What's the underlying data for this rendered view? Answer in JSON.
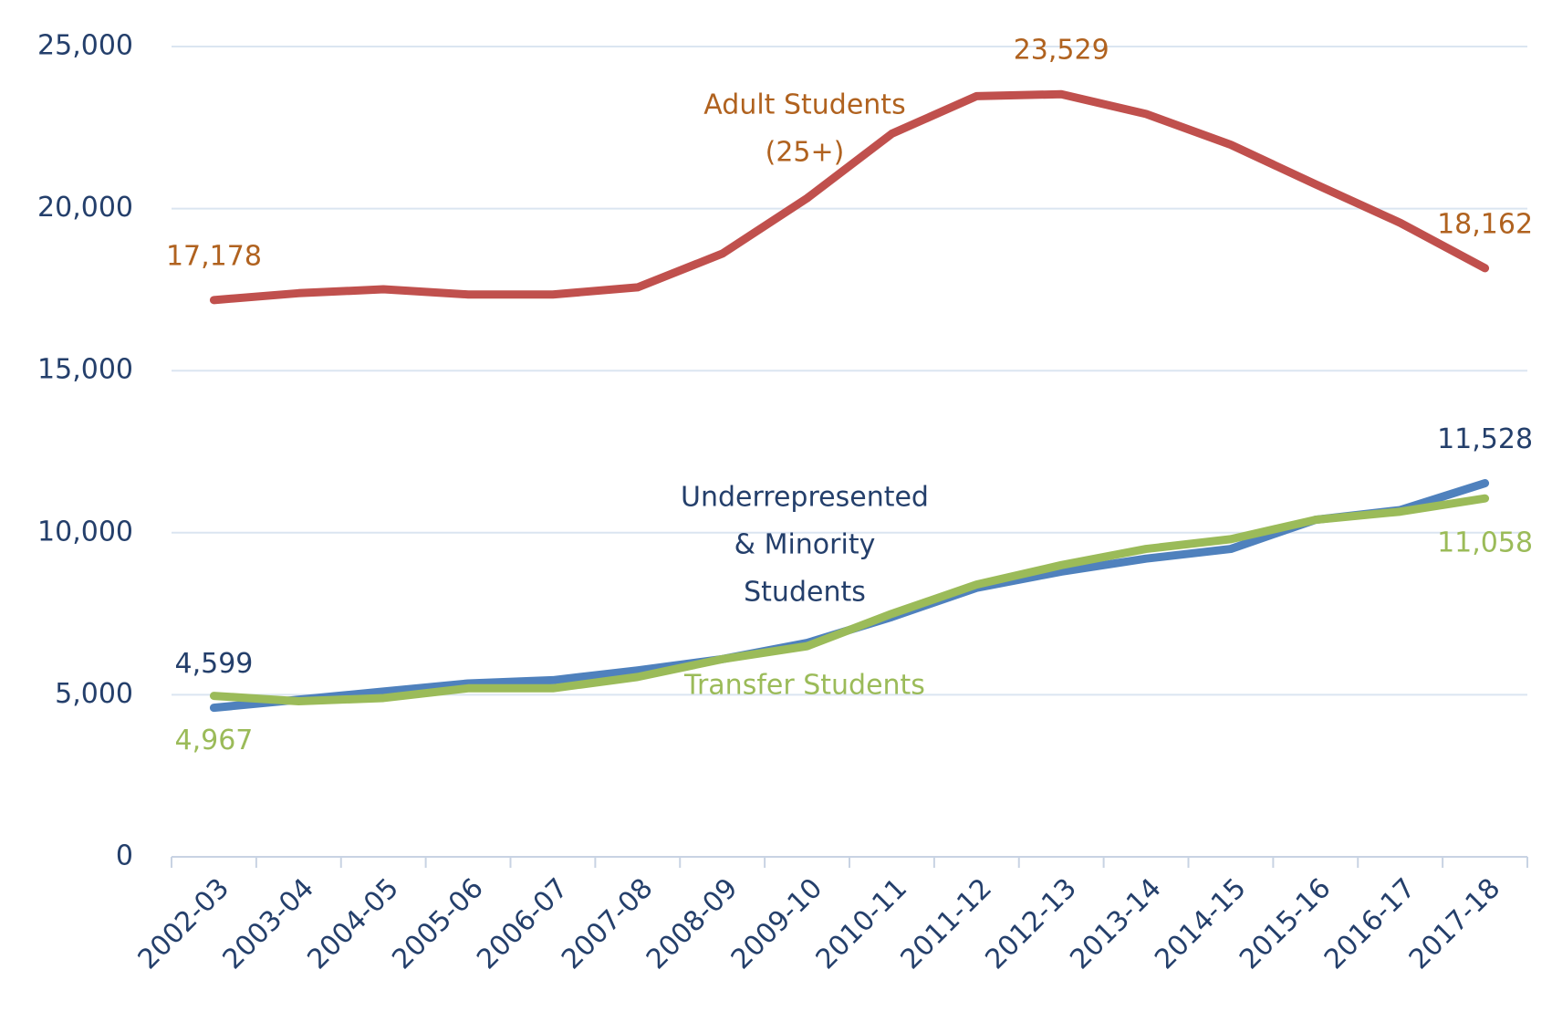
{
  "chart_data": {
    "type": "line",
    "categories": [
      "2002-03",
      "2003-04",
      "2004-05",
      "2005-06",
      "2006-07",
      "2007-08",
      "2008-09",
      "2009-10",
      "2010-11",
      "2011-12",
      "2012-13",
      "2013-14",
      "2014-15",
      "2015-16",
      "2016-17",
      "2017-18"
    ],
    "ylim": [
      0,
      25000
    ],
    "yticks": [
      0,
      {
        "value": 5000,
        "label": "5,000"
      },
      {
        "value": 10000,
        "label": "10,000"
      },
      {
        "value": 15000,
        "label": "15,000"
      },
      {
        "value": 20000,
        "label": "20,000"
      },
      {
        "value": 25000,
        "label": "25,000"
      }
    ],
    "grid": true,
    "series": [
      {
        "name": [
          "Adult Students",
          "(25+)"
        ],
        "color": "#c0504d",
        "label_color": "#b0621f",
        "values": [
          17178,
          17390,
          17510,
          17350,
          17350,
          17570,
          18610,
          20320,
          22310,
          23470,
          23529,
          22920,
          21970,
          20750,
          19560,
          18162
        ],
        "value_labels": [
          "17,178",
          null,
          null,
          null,
          null,
          null,
          null,
          null,
          null,
          null,
          "23,529",
          null,
          null,
          null,
          null,
          "18,162"
        ]
      },
      {
        "name": [
          "Underrepresented",
          "& Minority",
          "Students"
        ],
        "color": "#4f81bd",
        "label_color": "#243f6b",
        "values": [
          4599,
          4850,
          5100,
          5350,
          5450,
          5750,
          6100,
          6600,
          7400,
          8300,
          8800,
          9200,
          9500,
          10400,
          10700,
          11528
        ],
        "value_labels": [
          "4,599",
          null,
          null,
          null,
          null,
          null,
          null,
          null,
          null,
          null,
          null,
          null,
          null,
          null,
          null,
          "11,528"
        ]
      },
      {
        "name": [
          "Transfer Students"
        ],
        "color": "#9bbb59",
        "label_color": "#9bbb59",
        "values": [
          4967,
          4800,
          4900,
          5200,
          5200,
          5550,
          6100,
          6500,
          7500,
          8400,
          9000,
          9500,
          9800,
          10400,
          10650,
          11058
        ],
        "value_labels": [
          "4,967",
          null,
          null,
          null,
          null,
          null,
          null,
          null,
          null,
          null,
          null,
          null,
          null,
          null,
          null,
          "11,058"
        ]
      }
    ]
  }
}
